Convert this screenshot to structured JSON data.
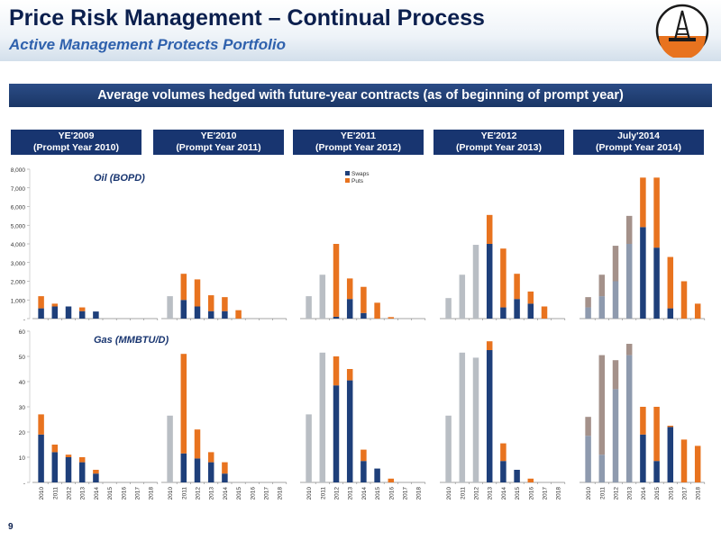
{
  "header": {
    "title": "Price Risk Management – Continual Process",
    "subtitle": "Active Management Protects Portfolio"
  },
  "banner": "Average volumes hedged with future-year contracts (as of beginning of prompt year)",
  "panels": [
    {
      "line1": "YE'2009",
      "line2": "(Prompt Year 2010)"
    },
    {
      "line1": "YE'2010",
      "line2": "(Prompt Year 2011)"
    },
    {
      "line1": "YE'2011",
      "line2": "(Prompt Year 2012)"
    },
    {
      "line1": "YE'2012",
      "line2": "(Prompt Year 2013)"
    },
    {
      "line1": "July'2014",
      "line2": "(Prompt Year 2014)"
    }
  ],
  "page_number": "9",
  "colors": {
    "swaps": "#1e3f7a",
    "puts": "#e8731f",
    "history": "#b9bec4",
    "history_swaps": "#8e9aae",
    "history_puts": "#a4918a"
  },
  "chart_data": [
    {
      "type": "bar",
      "stacked": true,
      "title": "Oil (BOPD)",
      "ylim": [
        0,
        8000
      ],
      "yticks": [
        "-",
        "1,000",
        "2,000",
        "3,000",
        "4,000",
        "5,000",
        "6,000",
        "7,000",
        "8,000"
      ],
      "legend": [
        "Swaps",
        "Puts"
      ],
      "legend_position": "top",
      "panels": [
        {
          "bars": [
            {
              "x": "2010",
              "swaps": 550,
              "puts": 650
            },
            {
              "x": "2011",
              "swaps": 650,
              "puts": 150
            },
            {
              "x": "2012",
              "swaps": 650,
              "puts": 0
            },
            {
              "x": "2013",
              "swaps": 400,
              "puts": 200
            },
            {
              "x": "2014",
              "swaps": 380,
              "puts": 0
            },
            {
              "x": "2015",
              "swaps": 0,
              "puts": 0
            },
            {
              "x": "2016",
              "swaps": 0,
              "puts": 0
            },
            {
              "x": "2017",
              "swaps": 0,
              "puts": 0
            },
            {
              "x": "2018",
              "swaps": 0,
              "puts": 0
            }
          ]
        },
        {
          "bars": [
            {
              "x": "2010",
              "history": 1200
            },
            {
              "x": "2011",
              "swaps": 1000,
              "puts": 1400
            },
            {
              "x": "2012",
              "swaps": 650,
              "puts": 1450
            },
            {
              "x": "2013",
              "swaps": 400,
              "puts": 850
            },
            {
              "x": "2014",
              "swaps": 400,
              "puts": 750
            },
            {
              "x": "2015",
              "swaps": 0,
              "puts": 450
            },
            {
              "x": "2016",
              "swaps": 0,
              "puts": 0
            },
            {
              "x": "2017",
              "swaps": 0,
              "puts": 0
            },
            {
              "x": "2018",
              "swaps": 0,
              "puts": 0
            }
          ]
        },
        {
          "bars": [
            {
              "x": "2010",
              "history": 1200
            },
            {
              "x": "2011",
              "history": 2350
            },
            {
              "x": "2012",
              "swaps": 100,
              "puts": 3900
            },
            {
              "x": "2013",
              "swaps": 1050,
              "puts": 1100
            },
            {
              "x": "2014",
              "swaps": 300,
              "puts": 1400
            },
            {
              "x": "2015",
              "swaps": 0,
              "puts": 850
            },
            {
              "x": "2016",
              "swaps": 0,
              "puts": 80
            },
            {
              "x": "2017",
              "swaps": 0,
              "puts": 0
            },
            {
              "x": "2018",
              "swaps": 0,
              "puts": 0
            }
          ]
        },
        {
          "bars": [
            {
              "x": "2010",
              "history": 1100
            },
            {
              "x": "2011",
              "history": 2350
            },
            {
              "x": "2012",
              "history": 3950
            },
            {
              "x": "2013",
              "swaps": 4000,
              "puts": 1550
            },
            {
              "x": "2014",
              "swaps": 600,
              "puts": 3150
            },
            {
              "x": "2015",
              "swaps": 1050,
              "puts": 1350
            },
            {
              "x": "2016",
              "swaps": 800,
              "puts": 650
            },
            {
              "x": "2017",
              "swaps": 0,
              "puts": 650
            },
            {
              "x": "2018",
              "swaps": 0,
              "puts": 0
            }
          ]
        },
        {
          "bars": [
            {
              "x": "2010",
              "history_swaps": 600,
              "history_puts": 550
            },
            {
              "x": "2011",
              "history_swaps": 1200,
              "history_puts": 1150
            },
            {
              "x": "2012",
              "history_swaps": 2000,
              "history_puts": 1900
            },
            {
              "x": "2013",
              "history_swaps": 4000,
              "history_puts": 1500
            },
            {
              "x": "2014",
              "swaps": 4900,
              "puts": 2650
            },
            {
              "x": "2015",
              "swaps": 3800,
              "puts": 3750
            },
            {
              "x": "2016",
              "swaps": 550,
              "puts": 2750
            },
            {
              "x": "2017",
              "swaps": 0,
              "puts": 2000
            },
            {
              "x": "2018",
              "swaps": 0,
              "puts": 800
            }
          ]
        }
      ]
    },
    {
      "type": "bar",
      "stacked": true,
      "title": "Gas (MMBTU/D)",
      "ylim": [
        0,
        60
      ],
      "yticks": [
        "-",
        "10",
        "20",
        "30",
        "40",
        "50",
        "60"
      ],
      "panels": [
        {
          "bars": [
            {
              "x": "2010",
              "swaps": 19,
              "puts": 8
            },
            {
              "x": "2011",
              "swaps": 12,
              "puts": 3
            },
            {
              "x": "2012",
              "swaps": 10,
              "puts": 1
            },
            {
              "x": "2013",
              "swaps": 8,
              "puts": 2
            },
            {
              "x": "2014",
              "swaps": 3.5,
              "puts": 1.5
            },
            {
              "x": "2015",
              "swaps": 0,
              "puts": 0
            },
            {
              "x": "2016",
              "swaps": 0,
              "puts": 0
            },
            {
              "x": "2017",
              "swaps": 0,
              "puts": 0
            },
            {
              "x": "2018",
              "swaps": 0,
              "puts": 0
            }
          ]
        },
        {
          "bars": [
            {
              "x": "2010",
              "history": 26.5
            },
            {
              "x": "2011",
              "swaps": 11.5,
              "puts": 39.5
            },
            {
              "x": "2012",
              "swaps": 9.5,
              "puts": 11.5
            },
            {
              "x": "2013",
              "swaps": 8,
              "puts": 4
            },
            {
              "x": "2014",
              "swaps": 3.5,
              "puts": 4.5
            },
            {
              "x": "2015",
              "swaps": 0,
              "puts": 0
            },
            {
              "x": "2016",
              "swaps": 0,
              "puts": 0
            },
            {
              "x": "2017",
              "swaps": 0,
              "puts": 0
            },
            {
              "x": "2018",
              "swaps": 0,
              "puts": 0
            }
          ]
        },
        {
          "bars": [
            {
              "x": "2010",
              "history": 27
            },
            {
              "x": "2011",
              "history": 51.5
            },
            {
              "x": "2012",
              "swaps": 38.5,
              "puts": 11.5
            },
            {
              "x": "2013",
              "swaps": 40.5,
              "puts": 4.5
            },
            {
              "x": "2014",
              "swaps": 8.5,
              "puts": 4.5
            },
            {
              "x": "2015",
              "swaps": 5.5,
              "puts": 0
            },
            {
              "x": "2016",
              "swaps": 0,
              "puts": 1.5
            },
            {
              "x": "2017",
              "swaps": 0,
              "puts": 0
            },
            {
              "x": "2018",
              "swaps": 0,
              "puts": 0
            }
          ]
        },
        {
          "bars": [
            {
              "x": "2010",
              "history": 26.5
            },
            {
              "x": "2011",
              "history": 51.5
            },
            {
              "x": "2012",
              "history": 49.5
            },
            {
              "x": "2013",
              "swaps": 52.5,
              "puts": 3.5
            },
            {
              "x": "2014",
              "swaps": 8.5,
              "puts": 7
            },
            {
              "x": "2015",
              "swaps": 5,
              "puts": 0
            },
            {
              "x": "2016",
              "swaps": 0,
              "puts": 1.5
            },
            {
              "x": "2017",
              "swaps": 0,
              "puts": 0
            },
            {
              "x": "2018",
              "swaps": 0,
              "puts": 0
            }
          ]
        },
        {
          "bars": [
            {
              "x": "2010",
              "history_swaps": 18.5,
              "history_puts": 7.5
            },
            {
              "x": "2011",
              "history_swaps": 11,
              "history_puts": 39.5
            },
            {
              "x": "2012",
              "history_swaps": 37,
              "history_puts": 11.5
            },
            {
              "x": "2013",
              "history_swaps": 50.5,
              "history_puts": 4.5
            },
            {
              "x": "2014",
              "swaps": 19,
              "puts": 11
            },
            {
              "x": "2015",
              "swaps": 8.5,
              "puts": 21.5
            },
            {
              "x": "2016",
              "swaps": 22,
              "puts": 0.5
            },
            {
              "x": "2017",
              "swaps": 0,
              "puts": 17
            },
            {
              "x": "2018",
              "swaps": 0,
              "puts": 14.5
            }
          ]
        }
      ]
    }
  ]
}
